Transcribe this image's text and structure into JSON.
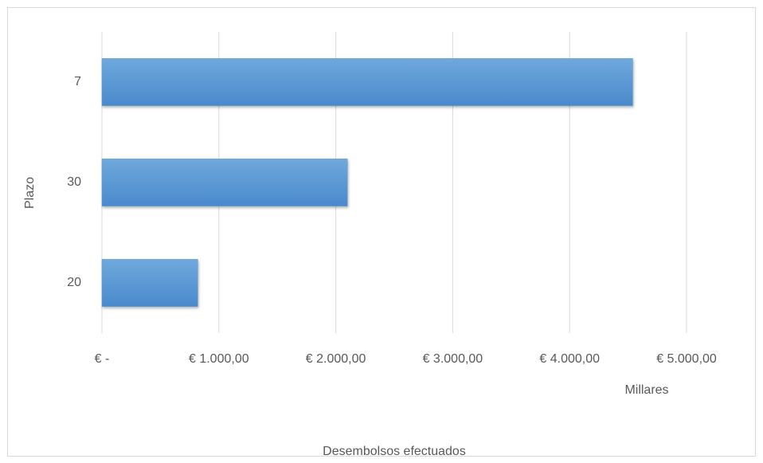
{
  "chart_data": {
    "type": "bar",
    "orientation": "horizontal",
    "categories": [
      "7",
      "30",
      "20"
    ],
    "values": [
      4540,
      2100,
      820
    ],
    "color": "#5b9bd5",
    "xlabel": "Desembolsos efectuados",
    "ylabel": "Plazo",
    "display_units": "Millares",
    "xlim": [
      0,
      5000
    ],
    "xticks": [
      {
        "value": 0,
        "label": "€ -"
      },
      {
        "value": 1000,
        "label": "€ 1.000,00"
      },
      {
        "value": 2000,
        "label": "€ 2.000,00"
      },
      {
        "value": 3000,
        "label": "€ 3.000,00"
      },
      {
        "value": 4000,
        "label": "€ 4.000,00"
      },
      {
        "value": 5000,
        "label": "€ 5.000,00"
      }
    ],
    "grid": true
  }
}
